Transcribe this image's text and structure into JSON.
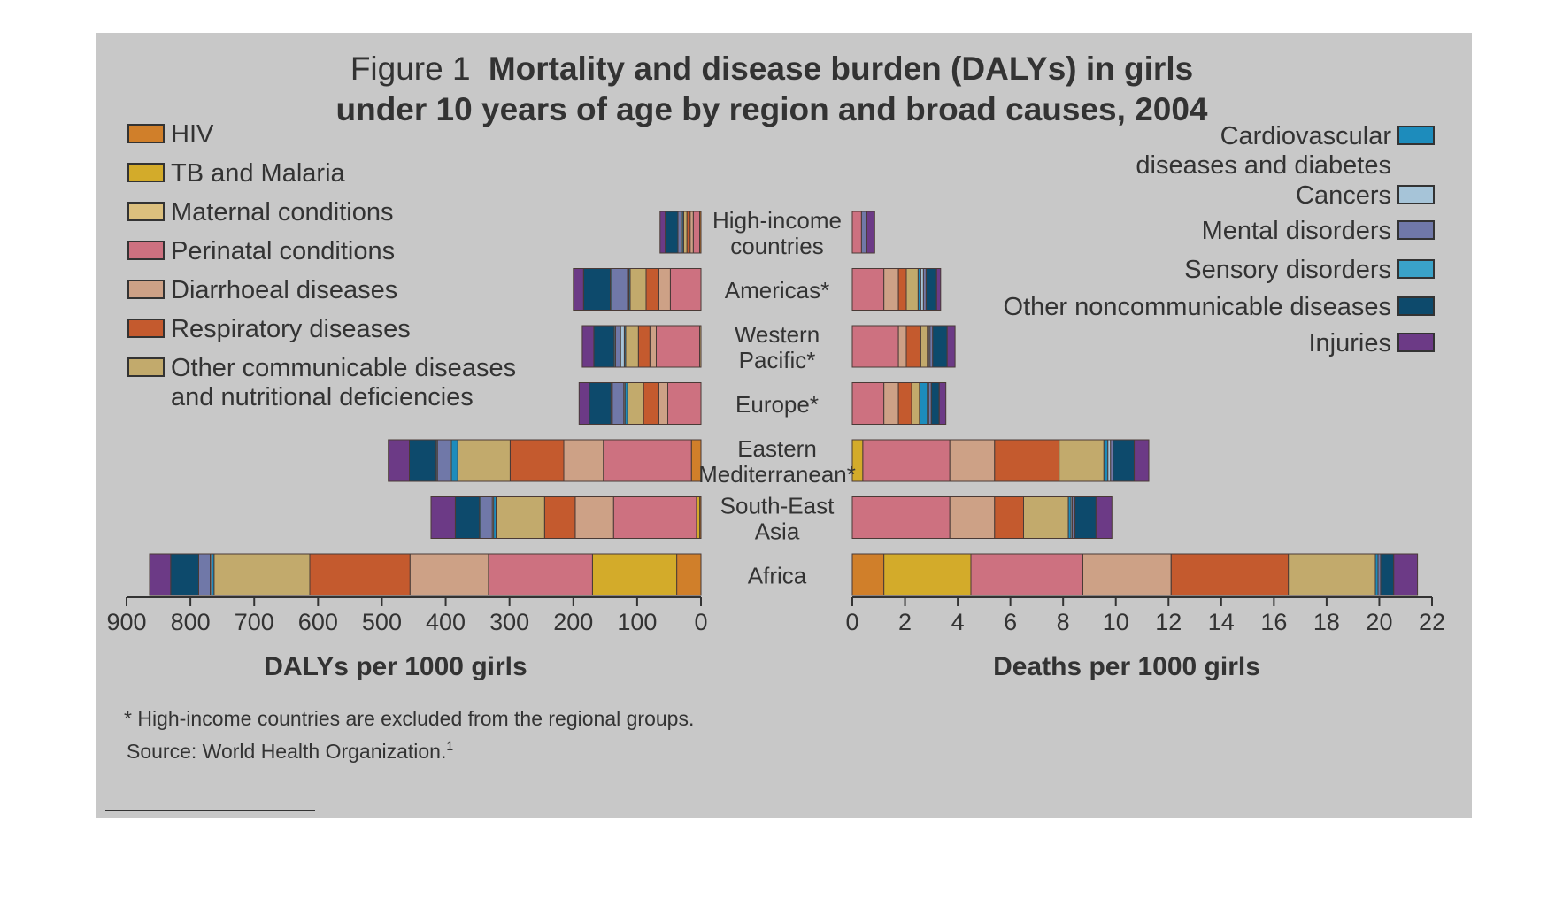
{
  "chart_data": {
    "type": "bar",
    "orientation": "horizontal",
    "stacked": true,
    "title": {
      "prefix": "Figure 1",
      "line1": "Mortality and disease burden (DALYs) in girls",
      "line2": "under 10 years of age by region and broad causes, 2004"
    },
    "categories": [
      {
        "name": "high-income",
        "lines": [
          "High-income",
          "countries"
        ]
      },
      {
        "name": "americas",
        "lines": [
          "Americas*"
        ]
      },
      {
        "name": "western-pacific",
        "lines": [
          "Western",
          "Pacific*"
        ]
      },
      {
        "name": "europe",
        "lines": [
          "Europe*"
        ]
      },
      {
        "name": "eastern-mediterranean",
        "lines": [
          "Eastern",
          "Mediterranean*"
        ]
      },
      {
        "name": "south-east-asia",
        "lines": [
          "South-East",
          "Asia"
        ]
      },
      {
        "name": "africa",
        "lines": [
          "Africa"
        ]
      }
    ],
    "causes": [
      {
        "key": "hiv",
        "label": [
          "HIV"
        ],
        "color": "#d07f2a"
      },
      {
        "key": "tb_malaria",
        "label": [
          "TB and Malaria"
        ],
        "color": "#d3ab2a"
      },
      {
        "key": "maternal",
        "label": [
          "Maternal conditions"
        ],
        "color": "#dcc07e"
      },
      {
        "key": "perinatal",
        "label": [
          "Perinatal conditions"
        ],
        "color": "#cd7180"
      },
      {
        "key": "diarrhoeal",
        "label": [
          "Diarrhoeal diseases"
        ],
        "color": "#cda186"
      },
      {
        "key": "respiratory",
        "label": [
          "Respiratory diseases"
        ],
        "color": "#c45a2e"
      },
      {
        "key": "other_communicable",
        "label": [
          "Other communicable diseases",
          "and nutritional deficiencies"
        ],
        "color": "#c2aa6c"
      },
      {
        "key": "cardiovascular",
        "label": [
          "Cardiovascular",
          "diseases and diabetes"
        ],
        "color": "#1d8cbc"
      },
      {
        "key": "cancers",
        "label": [
          "Cancers"
        ],
        "color": "#a6c4d8"
      },
      {
        "key": "mental",
        "label": [
          "Mental disorders"
        ],
        "color": "#7078a8"
      },
      {
        "key": "sensory",
        "label": [
          "Sensory disorders"
        ],
        "color": "#3aa2c8"
      },
      {
        "key": "other_noncommunicable",
        "label": [
          "Other noncommunicable diseases"
        ],
        "color": "#0d4a6c"
      },
      {
        "key": "injuries",
        "label": [
          "Injuries"
        ],
        "color": "#6c3a86"
      }
    ],
    "dalys": {
      "xlabel": "DALYs per 1000 girls",
      "xlim": [
        0,
        900
      ],
      "ticks": [
        900,
        800,
        700,
        600,
        500,
        400,
        300,
        200,
        100,
        0
      ],
      "values": [
        [
          2,
          0,
          0,
          10,
          5,
          5,
          5,
          2,
          2,
          5,
          0,
          20,
          8
        ],
        [
          0,
          0,
          0,
          48,
          18,
          20,
          25,
          2,
          2,
          25,
          2,
          42,
          16
        ],
        [
          0,
          0,
          2,
          68,
          10,
          18,
          20,
          2,
          6,
          8,
          2,
          32,
          18
        ],
        [
          0,
          0,
          0,
          52,
          14,
          24,
          25,
          4,
          2,
          18,
          2,
          34,
          16
        ],
        [
          15,
          0,
          0,
          138,
          62,
          84,
          82,
          10,
          2,
          20,
          2,
          42,
          33
        ],
        [
          2,
          5,
          0,
          130,
          60,
          48,
          76,
          4,
          2,
          18,
          2,
          38,
          38
        ],
        [
          38,
          132,
          0,
          163,
          123,
          157,
          150,
          4,
          2,
          18,
          0,
          44,
          33
        ]
      ]
    },
    "deaths": {
      "xlabel": "Deaths per 1000 girls",
      "xlim": [
        0,
        22
      ],
      "ticks": [
        0,
        2,
        4,
        6,
        8,
        10,
        12,
        14,
        16,
        18,
        20,
        22
      ],
      "values": [
        [
          0,
          0,
          0,
          0.35,
          0,
          0,
          0,
          0,
          0,
          0.2,
          0,
          0,
          0.3
        ],
        [
          0,
          0,
          0,
          1.2,
          0.55,
          0.3,
          0.45,
          0.1,
          0.1,
          0.1,
          0,
          0.4,
          0.15
        ],
        [
          0,
          0,
          0,
          1.75,
          0.3,
          0.55,
          0.25,
          0.05,
          0.05,
          0.1,
          0,
          0.55,
          0.3
        ],
        [
          0,
          0,
          0,
          1.2,
          0.55,
          0.5,
          0.3,
          0.3,
          0.05,
          0.1,
          0,
          0.3,
          0.25
        ],
        [
          0,
          0.4,
          0,
          3.3,
          1.7,
          2.45,
          1.7,
          0.15,
          0.1,
          0.1,
          0,
          0.8,
          0.55
        ],
        [
          0,
          0,
          0,
          3.7,
          1.7,
          1.1,
          1.7,
          0.1,
          0.05,
          0.1,
          0,
          0.8,
          0.6
        ],
        [
          1.2,
          3.3,
          0,
          4.25,
          3.35,
          4.45,
          3.3,
          0.1,
          0,
          0.1,
          0,
          0.5,
          0.9
        ]
      ]
    },
    "footnotes": [
      "* High-income countries are excluded from the regional groups.",
      "Source: World Health Organization."
    ],
    "footnote_sup": "1"
  }
}
